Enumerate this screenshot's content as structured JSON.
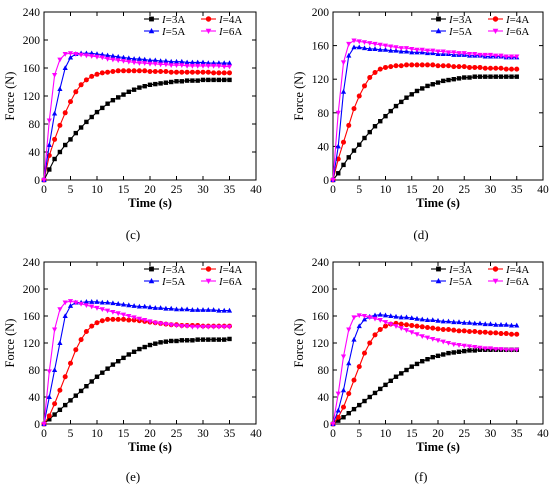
{
  "figure": {
    "panels": [
      {
        "label": "(c)"
      },
      {
        "label": "(d)"
      },
      {
        "label": "(e)"
      },
      {
        "label": "(f)"
      }
    ]
  },
  "legend": {
    "prefix": "I",
    "entries": [
      "=3A",
      "=4A",
      "=5A",
      "=6A"
    ]
  },
  "colors": {
    "I3": "#000000",
    "I4": "#ff0000",
    "I5": "#0000ff",
    "I6": "#ff00ff"
  },
  "markers": {
    "I3": "square",
    "I4": "circle",
    "I5": "triangle-up",
    "I6": "triangle-down"
  },
  "chart_data": [
    {
      "panel": "(c)",
      "type": "line",
      "xlabel": "Time (s)",
      "ylabel": "Force (N)",
      "xlim": [
        0,
        40
      ],
      "ylim": [
        0,
        240
      ],
      "xticks": [
        0,
        5,
        10,
        15,
        20,
        25,
        30,
        35,
        40
      ],
      "yticks": [
        0,
        40,
        80,
        120,
        160,
        200,
        240
      ],
      "legend_position": "top-right",
      "x": [
        0,
        1,
        2,
        3,
        4,
        5,
        6,
        7,
        8,
        9,
        10,
        11,
        12,
        13,
        14,
        15,
        16,
        17,
        18,
        19,
        20,
        21,
        22,
        23,
        24,
        25,
        26,
        27,
        28,
        29,
        30,
        31,
        32,
        33,
        34,
        35
      ],
      "series": [
        {
          "name": "I=3A",
          "values": [
            0,
            15,
            30,
            40,
            50,
            58,
            67,
            75,
            83,
            90,
            97,
            103,
            109,
            114,
            118,
            122,
            126,
            129,
            132,
            134,
            136,
            137,
            138,
            139,
            140,
            141,
            141,
            142,
            142,
            142,
            143,
            143,
            143,
            143,
            143,
            143
          ]
        },
        {
          "name": "I=4A",
          "values": [
            0,
            35,
            58,
            78,
            96,
            112,
            126,
            136,
            143,
            148,
            151,
            153,
            154,
            155,
            156,
            156,
            156,
            156,
            156,
            156,
            155,
            155,
            155,
            155,
            154,
            154,
            154,
            154,
            154,
            154,
            154,
            154,
            153,
            153,
            153,
            153
          ]
        },
        {
          "name": "I=5A",
          "values": [
            0,
            50,
            95,
            130,
            160,
            175,
            180,
            181,
            181,
            181,
            180,
            179,
            178,
            177,
            176,
            175,
            174,
            173,
            173,
            172,
            171,
            171,
            170,
            170,
            169,
            169,
            169,
            168,
            168,
            168,
            168,
            167,
            167,
            167,
            167,
            167
          ]
        },
        {
          "name": "I=6A",
          "values": [
            0,
            85,
            150,
            172,
            180,
            181,
            180,
            179,
            178,
            177,
            176,
            175,
            173,
            172,
            171,
            170,
            169,
            168,
            167,
            167,
            166,
            166,
            165,
            165,
            164,
            164,
            164,
            163,
            163,
            163,
            163,
            163,
            163,
            163,
            162,
            162
          ]
        }
      ]
    },
    {
      "panel": "(d)",
      "type": "line",
      "xlabel": "Time (s)",
      "ylabel": "Force (N)",
      "xlim": [
        0,
        40
      ],
      "ylim": [
        0,
        200
      ],
      "xticks": [
        0,
        5,
        10,
        15,
        20,
        25,
        30,
        35,
        40
      ],
      "yticks": [
        0,
        40,
        80,
        120,
        160,
        200
      ],
      "legend_position": "top-right",
      "x": [
        0,
        1,
        2,
        3,
        4,
        5,
        6,
        7,
        8,
        9,
        10,
        11,
        12,
        13,
        14,
        15,
        16,
        17,
        18,
        19,
        20,
        21,
        22,
        23,
        24,
        25,
        26,
        27,
        28,
        29,
        30,
        31,
        32,
        33,
        34,
        35
      ],
      "series": [
        {
          "name": "I=3A",
          "values": [
            0,
            8,
            18,
            27,
            35,
            42,
            50,
            57,
            64,
            70,
            76,
            82,
            88,
            93,
            98,
            102,
            106,
            109,
            112,
            114,
            116,
            118,
            119,
            120,
            121,
            122,
            122,
            123,
            123,
            123,
            123,
            123,
            123,
            123,
            123,
            123
          ]
        },
        {
          "name": "I=4A",
          "values": [
            0,
            25,
            45,
            65,
            85,
            100,
            112,
            122,
            128,
            132,
            134,
            135,
            136,
            136,
            137,
            137,
            137,
            137,
            137,
            137,
            136,
            136,
            136,
            135,
            135,
            135,
            134,
            134,
            134,
            133,
            133,
            133,
            133,
            132,
            132,
            132
          ]
        },
        {
          "name": "I=5A",
          "values": [
            0,
            40,
            105,
            148,
            158,
            158,
            157,
            156,
            156,
            155,
            155,
            154,
            154,
            153,
            153,
            152,
            152,
            152,
            151,
            151,
            150,
            150,
            150,
            149,
            149,
            149,
            148,
            148,
            148,
            147,
            147,
            147,
            147,
            146,
            146,
            146
          ]
        },
        {
          "name": "I=6A",
          "values": [
            0,
            80,
            140,
            162,
            166,
            165,
            164,
            163,
            162,
            161,
            160,
            159,
            158,
            157,
            157,
            156,
            155,
            155,
            154,
            154,
            153,
            153,
            152,
            152,
            151,
            151,
            150,
            150,
            149,
            149,
            149,
            148,
            148,
            147,
            147,
            147
          ]
        }
      ]
    },
    {
      "panel": "(e)",
      "type": "line",
      "xlabel": "Time (s)",
      "ylabel": "Force (N)",
      "xlim": [
        0,
        40
      ],
      "ylim": [
        0,
        240
      ],
      "xticks": [
        0,
        5,
        10,
        15,
        20,
        25,
        30,
        35,
        40
      ],
      "yticks": [
        0,
        40,
        80,
        120,
        160,
        200,
        240
      ],
      "legend_position": "top-right",
      "x": [
        0,
        1,
        2,
        3,
        4,
        5,
        6,
        7,
        8,
        9,
        10,
        11,
        12,
        13,
        14,
        15,
        16,
        17,
        18,
        19,
        20,
        21,
        22,
        23,
        24,
        25,
        26,
        27,
        28,
        29,
        30,
        31,
        32,
        33,
        34,
        35
      ],
      "series": [
        {
          "name": "I=3A",
          "values": [
            0,
            7,
            14,
            21,
            28,
            35,
            42,
            49,
            56,
            63,
            70,
            76,
            82,
            88,
            93,
            98,
            103,
            107,
            111,
            114,
            117,
            119,
            121,
            122,
            123,
            123,
            124,
            124,
            124,
            125,
            125,
            125,
            125,
            125,
            125,
            126
          ]
        },
        {
          "name": "I=4A",
          "values": [
            0,
            12,
            30,
            50,
            70,
            90,
            110,
            125,
            137,
            145,
            150,
            153,
            155,
            155,
            155,
            155,
            154,
            154,
            153,
            152,
            151,
            150,
            149,
            148,
            147,
            147,
            146,
            146,
            146,
            146,
            145,
            145,
            145,
            145,
            145,
            145
          ]
        },
        {
          "name": "I=5A",
          "values": [
            0,
            40,
            80,
            120,
            160,
            175,
            180,
            180,
            181,
            181,
            181,
            180,
            180,
            179,
            178,
            177,
            176,
            175,
            174,
            174,
            173,
            172,
            172,
            171,
            171,
            170,
            170,
            170,
            169,
            169,
            169,
            169,
            169,
            168,
            168,
            168
          ]
        },
        {
          "name": "I=6A",
          "values": [
            0,
            78,
            140,
            170,
            180,
            182,
            180,
            178,
            176,
            174,
            172,
            170,
            168,
            166,
            164,
            162,
            160,
            158,
            156,
            154,
            152,
            150,
            149,
            148,
            147,
            146,
            145,
            145,
            144,
            144,
            144,
            144,
            144,
            144,
            144,
            144
          ]
        }
      ]
    },
    {
      "panel": "(f)",
      "type": "line",
      "xlabel": "Time (s)",
      "ylabel": "Force (N)",
      "xlim": [
        0,
        40
      ],
      "ylim": [
        0,
        240
      ],
      "xticks": [
        0,
        5,
        10,
        15,
        20,
        25,
        30,
        35,
        40
      ],
      "yticks": [
        0,
        40,
        80,
        120,
        160,
        200,
        240
      ],
      "legend_position": "top-right",
      "x": [
        0,
        1,
        2,
        3,
        4,
        5,
        6,
        7,
        8,
        9,
        10,
        11,
        12,
        13,
        14,
        15,
        16,
        17,
        18,
        19,
        20,
        21,
        22,
        23,
        24,
        25,
        26,
        27,
        28,
        29,
        30,
        31,
        32,
        33,
        34,
        35
      ],
      "series": [
        {
          "name": "I=3A",
          "values": [
            0,
            5,
            10,
            16,
            22,
            28,
            34,
            40,
            46,
            52,
            58,
            64,
            70,
            75,
            80,
            85,
            89,
            93,
            96,
            99,
            101,
            103,
            105,
            106,
            107,
            108,
            109,
            109,
            110,
            110,
            110,
            110,
            110,
            110,
            110,
            110
          ]
        },
        {
          "name": "I=4A",
          "values": [
            0,
            10,
            25,
            45,
            65,
            85,
            105,
            120,
            132,
            140,
            145,
            148,
            149,
            148,
            147,
            146,
            145,
            144,
            143,
            142,
            141,
            140,
            140,
            139,
            138,
            138,
            137,
            137,
            136,
            136,
            135,
            135,
            134,
            134,
            133,
            133
          ]
        },
        {
          "name": "I=5A",
          "values": [
            0,
            20,
            50,
            90,
            125,
            145,
            155,
            159,
            161,
            162,
            161,
            160,
            159,
            158,
            158,
            157,
            156,
            155,
            154,
            154,
            153,
            152,
            152,
            151,
            151,
            150,
            150,
            149,
            149,
            148,
            148,
            147,
            147,
            147,
            146,
            146
          ]
        },
        {
          "name": "I=6A",
          "values": [
            0,
            45,
            100,
            140,
            158,
            161,
            160,
            158,
            156,
            154,
            151,
            148,
            145,
            142,
            139,
            136,
            133,
            130,
            128,
            126,
            124,
            122,
            120,
            118,
            117,
            116,
            115,
            114,
            113,
            112,
            112,
            111,
            111,
            110,
            110,
            110
          ]
        }
      ]
    }
  ]
}
